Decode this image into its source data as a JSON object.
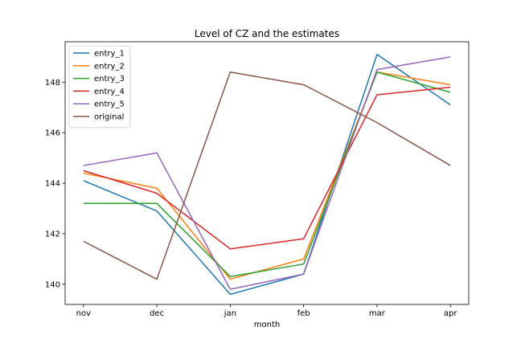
{
  "chart_data": {
    "type": "line",
    "title": "Level of CZ and the estimates",
    "xlabel": "month",
    "ylabel": "",
    "categories": [
      "nov",
      "dec",
      "jan",
      "feb",
      "mar",
      "apr"
    ],
    "ylim": [
      139.2,
      149.6
    ],
    "yticks": [
      140,
      142,
      144,
      146,
      148
    ],
    "grid": false,
    "legend": "top-left",
    "series": [
      {
        "name": "entry_1",
        "color": "#1f77b4",
        "values": [
          144.1,
          142.9,
          139.6,
          140.4,
          149.1,
          147.1
        ]
      },
      {
        "name": "entry_2",
        "color": "#ff7f0e",
        "values": [
          144.4,
          143.8,
          140.2,
          141.0,
          148.4,
          147.9
        ]
      },
      {
        "name": "entry_3",
        "color": "#2ca02c",
        "values": [
          143.2,
          143.2,
          140.3,
          140.8,
          148.4,
          147.6
        ]
      },
      {
        "name": "entry_4",
        "color": "#d62728",
        "values": [
          144.5,
          143.6,
          141.4,
          141.8,
          147.5,
          147.8
        ]
      },
      {
        "name": "entry_5",
        "color": "#9467bd",
        "values": [
          144.7,
          145.2,
          139.8,
          140.4,
          148.5,
          149.0
        ]
      },
      {
        "name": "original",
        "color": "#8c564b",
        "values": [
          141.7,
          140.2,
          148.4,
          147.9,
          146.4,
          144.7
        ]
      }
    ]
  }
}
